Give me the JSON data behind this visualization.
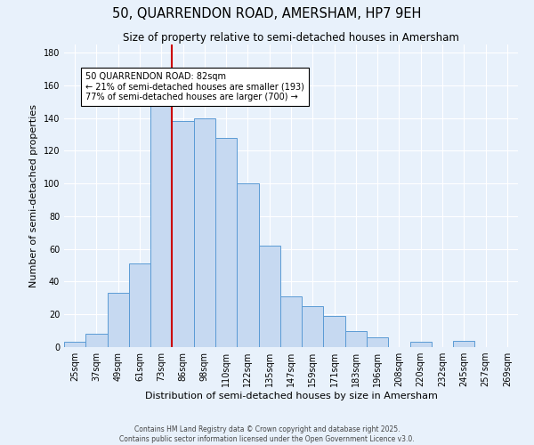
{
  "title": "50, QUARRENDON ROAD, AMERSHAM, HP7 9EH",
  "subtitle": "Size of property relative to semi-detached houses in Amersham",
  "xlabel": "Distribution of semi-detached houses by size in Amersham",
  "ylabel": "Number of semi-detached properties",
  "bin_labels": [
    "25sqm",
    "37sqm",
    "49sqm",
    "61sqm",
    "73sqm",
    "86sqm",
    "98sqm",
    "110sqm",
    "122sqm",
    "135sqm",
    "147sqm",
    "159sqm",
    "171sqm",
    "183sqm",
    "196sqm",
    "208sqm",
    "220sqm",
    "232sqm",
    "245sqm",
    "257sqm",
    "269sqm"
  ],
  "bar_heights": [
    3,
    8,
    33,
    51,
    151,
    138,
    140,
    128,
    100,
    62,
    31,
    25,
    19,
    10,
    6,
    0,
    3,
    0,
    4,
    0,
    0
  ],
  "bar_color": "#c6d9f1",
  "bar_edge_color": "#5b9bd5",
  "red_line_color": "#cc0000",
  "annotation_title": "50 QUARRENDON ROAD: 82sqm",
  "annotation_line1": "← 21% of semi-detached houses are smaller (193)",
  "annotation_line2": "77% of semi-detached houses are larger (700) →",
  "ylim": [
    0,
    185
  ],
  "yticks": [
    0,
    20,
    40,
    60,
    80,
    100,
    120,
    140,
    160,
    180
  ],
  "footnote1": "Contains HM Land Registry data © Crown copyright and database right 2025.",
  "footnote2": "Contains public sector information licensed under the Open Government Licence v3.0.",
  "bg_color": "#e8f1fb",
  "grid_color": "#ffffff",
  "title_fontsize": 10.5,
  "subtitle_fontsize": 8.5,
  "axis_label_fontsize": 8,
  "tick_fontsize": 7,
  "footnote_fontsize": 5.5,
  "red_line_x": 4.5
}
